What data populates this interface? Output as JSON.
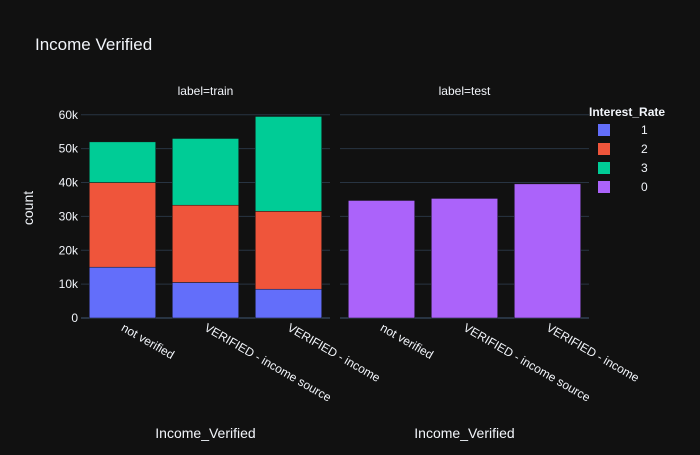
{
  "chart_data": {
    "type": "bar",
    "barmode": "stack",
    "title": "Income Verified",
    "ylabel": "count",
    "ylim": [
      0,
      62000
    ],
    "yticks": [
      0,
      10000,
      20000,
      30000,
      40000,
      50000,
      60000
    ],
    "ytick_labels": [
      "0",
      "10k",
      "20k",
      "30k",
      "40k",
      "50k",
      "60k"
    ],
    "grid": true,
    "legend": {
      "title": "Interest_Rate",
      "position": "top-right",
      "entries": [
        {
          "name": "1",
          "color": "#636efa"
        },
        {
          "name": "2",
          "color": "#ef553b"
        },
        {
          "name": "3",
          "color": "#00cc96"
        },
        {
          "name": "0",
          "color": "#ab63fa"
        }
      ]
    },
    "facets": [
      {
        "label": "label=train",
        "xlabel": "Income_Verified",
        "categories": [
          "not verified",
          "VERIFIED - income source",
          "VERIFIED - income"
        ],
        "series": [
          {
            "name": "1",
            "color": "#636efa",
            "values": [
              15000,
              10500,
              8500
            ]
          },
          {
            "name": "2",
            "color": "#ef553b",
            "values": [
              25000,
              22800,
              23000
            ]
          },
          {
            "name": "3",
            "color": "#00cc96",
            "values": [
              12000,
              19700,
              28000
            ]
          }
        ]
      },
      {
        "label": "label=test",
        "xlabel": "Income_Verified",
        "categories": [
          "not verified",
          "VERIFIED - income source",
          "VERIFIED - income"
        ],
        "series": [
          {
            "name": "0",
            "color": "#ab63fa",
            "values": [
              34700,
              35300,
              39600
            ]
          }
        ]
      }
    ]
  },
  "colors": {
    "background": "#111111",
    "grid": "#283442",
    "text": "#f2f5fa"
  }
}
